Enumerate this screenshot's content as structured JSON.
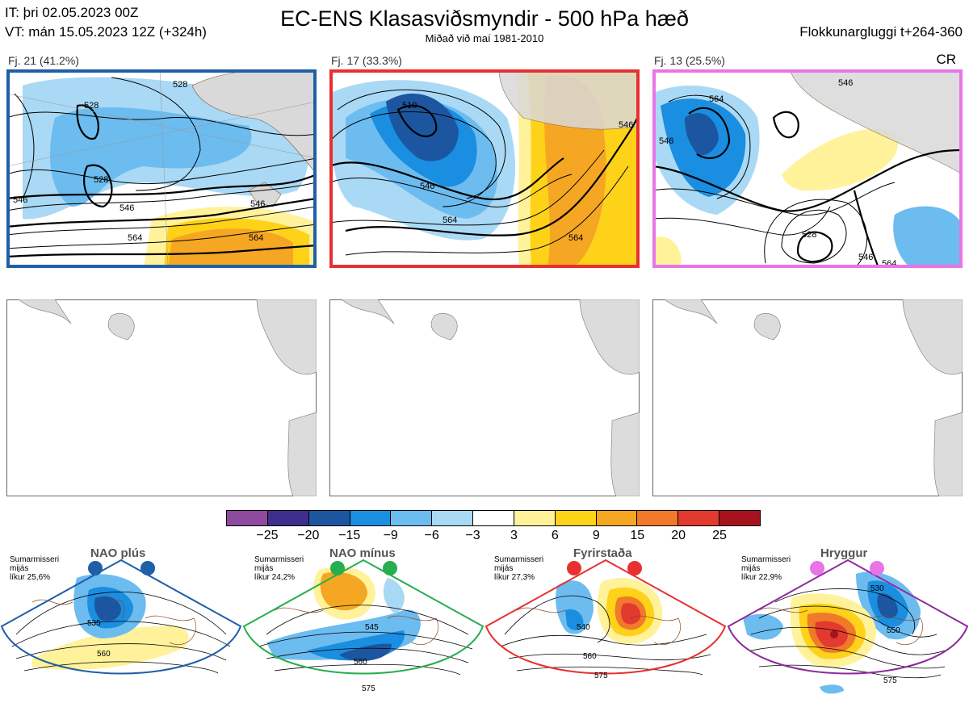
{
  "header": {
    "it_line": "IT: þri 02.05.2023 00Z",
    "vt_line": "VT: mán 15.05.2023 12Z  (+324h)",
    "title": "EC-ENS Klasasviðsmyndir - 500 hPa hæð",
    "subtitle": "Miðað við maí 1981-2010",
    "window": "Flokkunargluggi t+264-360",
    "cr": "CR"
  },
  "clusters": [
    {
      "label": "Fj. 21 (41.2%)",
      "border_color": "#1f5fa8",
      "contours": [
        "528",
        "528",
        "546",
        "546",
        "546",
        "564",
        "564",
        "528"
      ]
    },
    {
      "label": "Fj. 17 (33.3%)",
      "border_color": "#e83030",
      "contours": [
        "510",
        "546",
        "564",
        "564",
        "546"
      ]
    },
    {
      "label": "Fj. 13 (25.5%)",
      "border_color": "#e874e8",
      "contours": [
        "546",
        "564",
        "546",
        "528",
        "546",
        "564"
      ]
    }
  ],
  "colorbar": {
    "colors": [
      "#8e4a9e",
      "#3e2f8c",
      "#1d56a0",
      "#1a8ee0",
      "#6cbcf0",
      "#a9d9f5",
      "#ffffff",
      "#fff29a",
      "#ffd21a",
      "#f5a623",
      "#f07a2a",
      "#e23a2e",
      "#a6121d"
    ],
    "ticks": [
      "−25",
      "−20",
      "−15",
      "−9",
      "−6",
      "−3",
      "3",
      "6",
      "9",
      "15",
      "20",
      "25"
    ]
  },
  "regimes": [
    {
      "name": "NAO plús",
      "season": "Sumarmisseri",
      "avg": "mijás",
      "prob": "líkur 25,6%",
      "dot_color": "#1f5fa8",
      "frame_color": "#1f5fa8",
      "contours": [
        "535",
        "560"
      ]
    },
    {
      "name": "NAO mínus",
      "season": "Sumarmisseri",
      "avg": "mijás",
      "prob": "líkur 24,2%",
      "dot_color": "#27ae4f",
      "frame_color": "#27ae4f",
      "contours": [
        "545",
        "560",
        "575"
      ]
    },
    {
      "name": "Fyrirstaða",
      "season": "Sumarmisseri",
      "avg": "mijás",
      "prob": "líkur 27,3%",
      "dot_color": "#e83030",
      "frame_color": "#e83030",
      "contours": [
        "540",
        "560",
        "575"
      ]
    },
    {
      "name": "Hryggur",
      "season": "Sumarmisseri",
      "avg": "mijás",
      "prob": "líkur 22,9%",
      "dot_color": "#e874e8",
      "frame_color": "#8e2a9e",
      "contours": [
        "530",
        "550",
        "575"
      ]
    }
  ]
}
